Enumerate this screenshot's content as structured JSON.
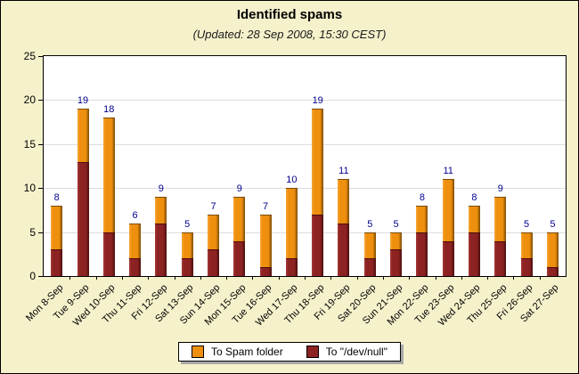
{
  "header": {
    "title": "Identified spams",
    "subtitle": "(Updated: 28 Sep 2008, 15:30 CEST)"
  },
  "colors": {
    "background": "#F5F1CB",
    "plot_background": "#FFFFFF",
    "gridline": "#DCDCDC",
    "axis": "#000000",
    "value_label": "#00008B",
    "spam_base": "#EE8F0E",
    "spam_light": "#F8A93C",
    "spam_dark": "#7A4B03",
    "null_base": "#8C2222",
    "null_light": "#A83A3A",
    "null_dark": "#4A0D0D",
    "legend_shadow": "#A9A9A9"
  },
  "chart_data": {
    "type": "bar",
    "stacked": true,
    "title": "Identified spams",
    "subtitle": "(Updated: 28 Sep 2008, 15:30 CEST)",
    "xlabel": "",
    "ylabel": "",
    "ylim": [
      0,
      25
    ],
    "yticks": [
      0,
      5,
      10,
      15,
      20,
      25
    ],
    "grid": true,
    "legend_position": "bottom",
    "categories": [
      "Mon 8-Sep",
      "Tue 9-Sep",
      "Wed 10-Sep",
      "Thu 11-Sep",
      "Fri 12-Sep",
      "Sat 13-Sep",
      "Sun 14-Sep",
      "Mon 15-Sep",
      "Tue 16-Sep",
      "Wed 17-Sep",
      "Thu 18-Sep",
      "Fri 19-Sep",
      "Sat 20-Sep",
      "Sun 21-Sep",
      "Mon 22-Sep",
      "Tue 23-Sep",
      "Wed 24-Sep",
      "Thu 25-Sep",
      "Fri 26-Sep",
      "Sat 27-Sep"
    ],
    "series": [
      {
        "name": "To Spam folder",
        "color": "#EE8F0E",
        "values": [
          5,
          6,
          13,
          4,
          3,
          3,
          4,
          5,
          6,
          8,
          12,
          5,
          3,
          2,
          3,
          7,
          3,
          5,
          3,
          4
        ]
      },
      {
        "name": "To \"/dev/null\"",
        "color": "#8C2222",
        "values": [
          3,
          13,
          5,
          2,
          6,
          2,
          3,
          4,
          1,
          2,
          7,
          6,
          2,
          3,
          5,
          4,
          5,
          4,
          2,
          1
        ]
      }
    ],
    "totals": [
      8,
      19,
      18,
      6,
      9,
      5,
      7,
      9,
      7,
      10,
      19,
      11,
      5,
      5,
      8,
      11,
      8,
      9,
      5,
      5
    ]
  }
}
